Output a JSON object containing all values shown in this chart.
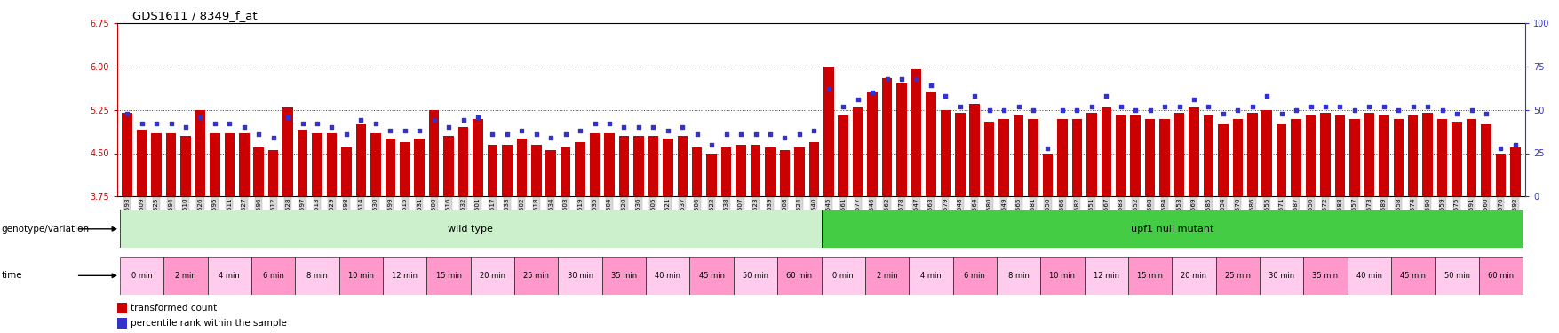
{
  "title": "GDS1611 / 8349_f_at",
  "ylim_left": [
    3.75,
    6.75
  ],
  "ylim_right": [
    0,
    100
  ],
  "yticks_left": [
    3.75,
    4.5,
    5.25,
    6.0,
    6.75
  ],
  "yticks_right": [
    0,
    25,
    50,
    75,
    100
  ],
  "baseline": 3.75,
  "samples": [
    "GSM67593",
    "GSM67609",
    "GSM67625",
    "GSM67594",
    "GSM67610",
    "GSM67626",
    "GSM67595",
    "GSM67611",
    "GSM67627",
    "GSM67596",
    "GSM67612",
    "GSM67628",
    "GSM67597",
    "GSM67613",
    "GSM67629",
    "GSM67598",
    "GSM67614",
    "GSM67630",
    "GSM67599",
    "GSM67615",
    "GSM67631",
    "GSM67600",
    "GSM67616",
    "GSM67632",
    "GSM67601",
    "GSM67617",
    "GSM67633",
    "GSM67602",
    "GSM67618",
    "GSM67634",
    "GSM67603",
    "GSM67619",
    "GSM67635",
    "GSM67604",
    "GSM67620",
    "GSM67636",
    "GSM67605",
    "GSM67621",
    "GSM67637",
    "GSM67606",
    "GSM67622",
    "GSM67638",
    "GSM67607",
    "GSM67623",
    "GSM67639",
    "GSM67608",
    "GSM67624",
    "GSM67640",
    "GSM67545",
    "GSM67561",
    "GSM67577",
    "GSM67546",
    "GSM67562",
    "GSM67578",
    "GSM67547",
    "GSM67563",
    "GSM67579",
    "GSM67548",
    "GSM67564",
    "GSM67580",
    "GSM67549",
    "GSM67565",
    "GSM67581",
    "GSM67550",
    "GSM67566",
    "GSM67582",
    "GSM67551",
    "GSM67567",
    "GSM67583",
    "GSM67552",
    "GSM67568",
    "GSM67584",
    "GSM67553",
    "GSM67569",
    "GSM67585",
    "GSM67554",
    "GSM67570",
    "GSM67586",
    "GSM67555",
    "GSM67571",
    "GSM67587",
    "GSM67556",
    "GSM67572",
    "GSM67588",
    "GSM67557",
    "GSM67573",
    "GSM67589",
    "GSM67558",
    "GSM67574",
    "GSM67590",
    "GSM67559",
    "GSM67575",
    "GSM67591",
    "GSM67560",
    "GSM67576",
    "GSM67592"
  ],
  "bar_values": [
    5.2,
    4.9,
    4.85,
    4.85,
    4.8,
    5.25,
    4.85,
    4.85,
    4.85,
    4.6,
    4.55,
    5.3,
    4.9,
    4.85,
    4.85,
    4.6,
    5.0,
    4.85,
    4.75,
    4.7,
    4.75,
    5.25,
    4.8,
    4.95,
    5.1,
    4.65,
    4.65,
    4.75,
    4.65,
    4.55,
    4.6,
    4.7,
    4.85,
    4.85,
    4.8,
    4.8,
    4.8,
    4.75,
    4.8,
    4.6,
    4.5,
    4.6,
    4.65,
    4.65,
    4.6,
    4.55,
    4.6,
    4.7,
    6.0,
    5.15,
    5.3,
    5.55,
    5.8,
    5.7,
    5.95,
    5.55,
    5.25,
    5.2,
    5.35,
    5.05,
    5.1,
    5.15,
    5.1,
    4.5,
    5.1,
    5.1,
    5.2,
    5.3,
    5.15,
    5.15,
    5.1,
    5.1,
    5.2,
    5.3,
    5.15,
    5.0,
    5.1,
    5.2,
    5.25,
    5.0,
    5.1,
    5.15,
    5.2,
    5.15,
    5.1,
    5.2,
    5.15,
    5.1,
    5.15,
    5.2,
    5.1,
    5.05,
    5.1,
    5.0,
    4.5,
    4.6
  ],
  "dot_values": [
    48,
    42,
    42,
    42,
    40,
    46,
    42,
    42,
    40,
    36,
    34,
    46,
    42,
    42,
    40,
    36,
    44,
    42,
    38,
    38,
    38,
    44,
    40,
    44,
    46,
    36,
    36,
    38,
    36,
    34,
    36,
    38,
    42,
    42,
    40,
    40,
    40,
    38,
    40,
    36,
    30,
    36,
    36,
    36,
    36,
    34,
    36,
    38,
    62,
    52,
    56,
    60,
    68,
    68,
    68,
    64,
    58,
    52,
    58,
    50,
    50,
    52,
    50,
    28,
    50,
    50,
    52,
    58,
    52,
    50,
    50,
    52,
    52,
    56,
    52,
    48,
    50,
    52,
    58,
    48,
    50,
    52,
    52,
    52,
    50,
    52,
    52,
    50,
    52,
    52,
    50,
    48,
    50,
    48,
    28,
    30
  ],
  "wild_type_count": 48,
  "mutant_count": 48,
  "time_labels": [
    "0 min",
    "2 min",
    "4 min",
    "6 min",
    "8 min",
    "10 min",
    "12 min",
    "15 min",
    "20 min",
    "25 min",
    "30 min",
    "35 min",
    "40 min",
    "45 min",
    "50 min",
    "60 min"
  ],
  "cols_per_time": 3,
  "bar_color": "#cc0000",
  "dot_color": "#3333cc",
  "background_color": "#ffffff",
  "wt_color_light": "#ccf0cc",
  "mut_color_dark": "#44cc44",
  "time_color_a": "#ff99cc",
  "time_color_b": "#ffccee",
  "dotted_line_color": "#444444",
  "tick_box_color": "#d8d8d8",
  "tick_box_edge": "#aaaaaa"
}
